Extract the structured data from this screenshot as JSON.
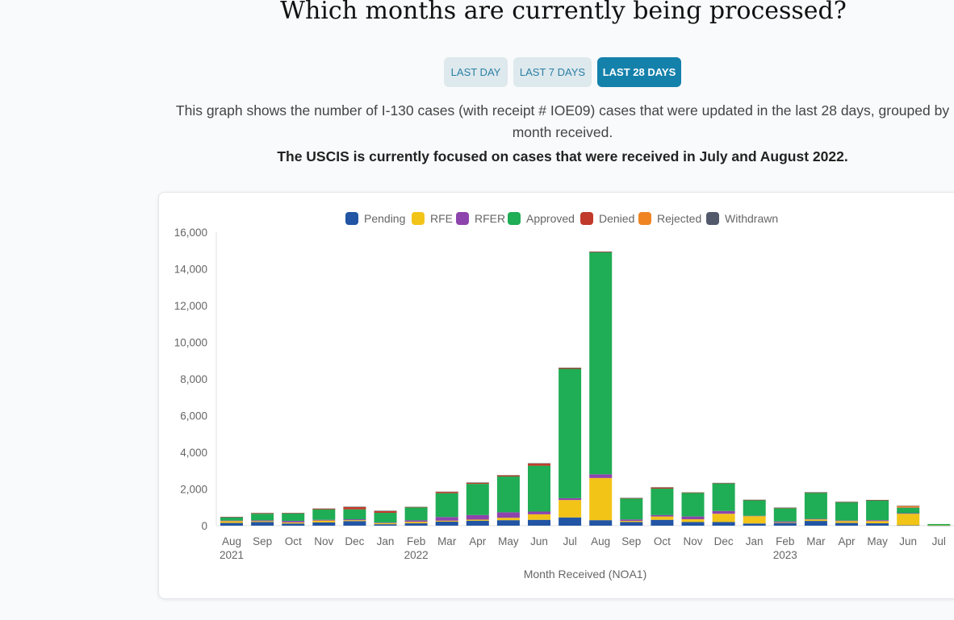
{
  "page": {
    "heading": "Which months are currently being processed?",
    "filters": [
      {
        "label": "LAST DAY",
        "active": false
      },
      {
        "label": "LAST 7 DAYS",
        "active": false
      },
      {
        "label": "LAST 28 DAYS",
        "active": true
      }
    ],
    "description": "This graph shows the number of I-130 cases (with receipt # IOE09) cases that were updated in the last 28 days, grouped by month received.",
    "focus_note": "The USCIS is currently focused on cases that were received in July and August 2022."
  },
  "colors": {
    "accent": "#1481ab",
    "button_inactive_bg": "#dde9ed",
    "button_inactive_text": "#2b7ea5"
  },
  "chart_data": {
    "type": "bar",
    "stacked": true,
    "title": "",
    "xlabel": "Month Received (NOA1)",
    "ylabel": "",
    "ylim": [
      0,
      16000
    ],
    "yticks": [
      0,
      2000,
      4000,
      6000,
      8000,
      10000,
      12000,
      14000,
      16000
    ],
    "ytick_labels": [
      "0",
      "2,000",
      "4,000",
      "6,000",
      "8,000",
      "10,000",
      "12,000",
      "14,000",
      "16,000"
    ],
    "grid": false,
    "legend_position": "top",
    "categories": [
      "Aug",
      "Sep",
      "Oct",
      "Nov",
      "Dec",
      "Jan",
      "Feb",
      "Mar",
      "Apr",
      "May",
      "Jun",
      "Jul",
      "Aug",
      "Sep",
      "Oct",
      "Nov",
      "Dec",
      "Jan",
      "Feb",
      "Mar",
      "Apr",
      "May",
      "Jun",
      "Jul"
    ],
    "category_sublabels": [
      "2021",
      "",
      "",
      "",
      "",
      "",
      "2022",
      "",
      "",
      "",
      "",
      "",
      "",
      "",
      "",
      "",
      "",
      "",
      "2023",
      "",
      "",
      "",
      "",
      ""
    ],
    "series": [
      {
        "name": "Pending",
        "color": "#2255a4",
        "values": [
          150,
          200,
          120,
          180,
          250,
          80,
          130,
          220,
          270,
          300,
          320,
          450,
          300,
          200,
          320,
          200,
          200,
          120,
          150,
          260,
          150,
          130,
          20,
          10
        ]
      },
      {
        "name": "RFE",
        "color": "#f2c418",
        "values": [
          100,
          50,
          60,
          100,
          50,
          60,
          80,
          50,
          60,
          130,
          300,
          950,
          2300,
          60,
          180,
          150,
          450,
          400,
          30,
          80,
          100,
          120,
          630,
          10
        ]
      },
      {
        "name": "RFER",
        "color": "#8e44ad",
        "values": [
          30,
          40,
          80,
          40,
          50,
          30,
          80,
          200,
          250,
          300,
          150,
          100,
          200,
          80,
          80,
          150,
          150,
          20,
          50,
          30,
          30,
          50,
          30,
          0
        ]
      },
      {
        "name": "Approved",
        "color": "#1fad55",
        "values": [
          170,
          360,
          400,
          560,
          540,
          530,
          700,
          1300,
          1700,
          1950,
          2500,
          7050,
          12100,
          1150,
          1440,
          1280,
          1500,
          850,
          720,
          1430,
          1000,
          1080,
          300,
          70
        ]
      },
      {
        "name": "Denied",
        "color": "#c0392b",
        "values": [
          20,
          30,
          20,
          40,
          130,
          100,
          20,
          70,
          60,
          60,
          120,
          50,
          30,
          10,
          60,
          20,
          20,
          10,
          20,
          10,
          10,
          10,
          20,
          0
        ]
      },
      {
        "name": "Rejected",
        "color": "#f08423",
        "values": [
          10,
          10,
          10,
          10,
          10,
          10,
          10,
          10,
          10,
          10,
          10,
          10,
          10,
          10,
          10,
          10,
          10,
          10,
          10,
          10,
          10,
          10,
          80,
          0
        ]
      },
      {
        "name": "Withdrawn",
        "color": "#51596b",
        "values": [
          5,
          5,
          5,
          5,
          5,
          5,
          5,
          5,
          5,
          5,
          5,
          5,
          5,
          5,
          5,
          5,
          5,
          5,
          5,
          5,
          5,
          5,
          5,
          0
        ]
      }
    ]
  }
}
